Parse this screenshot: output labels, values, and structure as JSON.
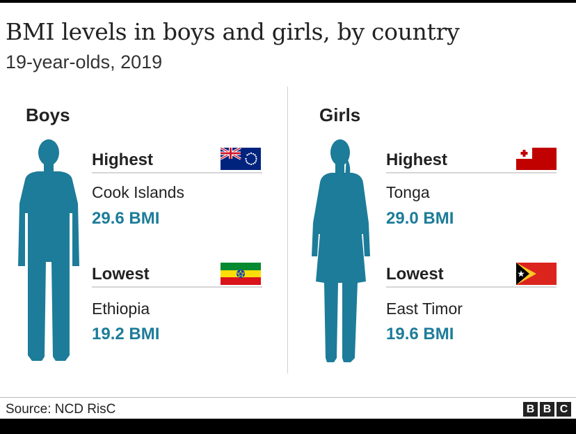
{
  "header": {
    "title": "BMI levels in boys and girls, by country",
    "subtitle": "19-year-olds, 2019"
  },
  "colors": {
    "accent": "#1d7c99",
    "silhouette": "#1d7c99"
  },
  "boys": {
    "label": "Boys",
    "highest": {
      "heading": "Highest",
      "country": "Cook Islands",
      "value": "29.6 BMI",
      "flag": "cook-islands-flag"
    },
    "lowest": {
      "heading": "Lowest",
      "country": "Ethiopia",
      "value": "19.2 BMI",
      "flag": "ethiopia-flag"
    }
  },
  "girls": {
    "label": "Girls",
    "highest": {
      "heading": "Highest",
      "country": "Tonga",
      "value": "29.0 BMI",
      "flag": "tonga-flag"
    },
    "lowest": {
      "heading": "Lowest",
      "country": "East Timor",
      "value": "19.6 BMI",
      "flag": "east-timor-flag"
    }
  },
  "footer": {
    "source": "Source: NCD RisC",
    "logo": [
      "B",
      "B",
      "C"
    ]
  }
}
